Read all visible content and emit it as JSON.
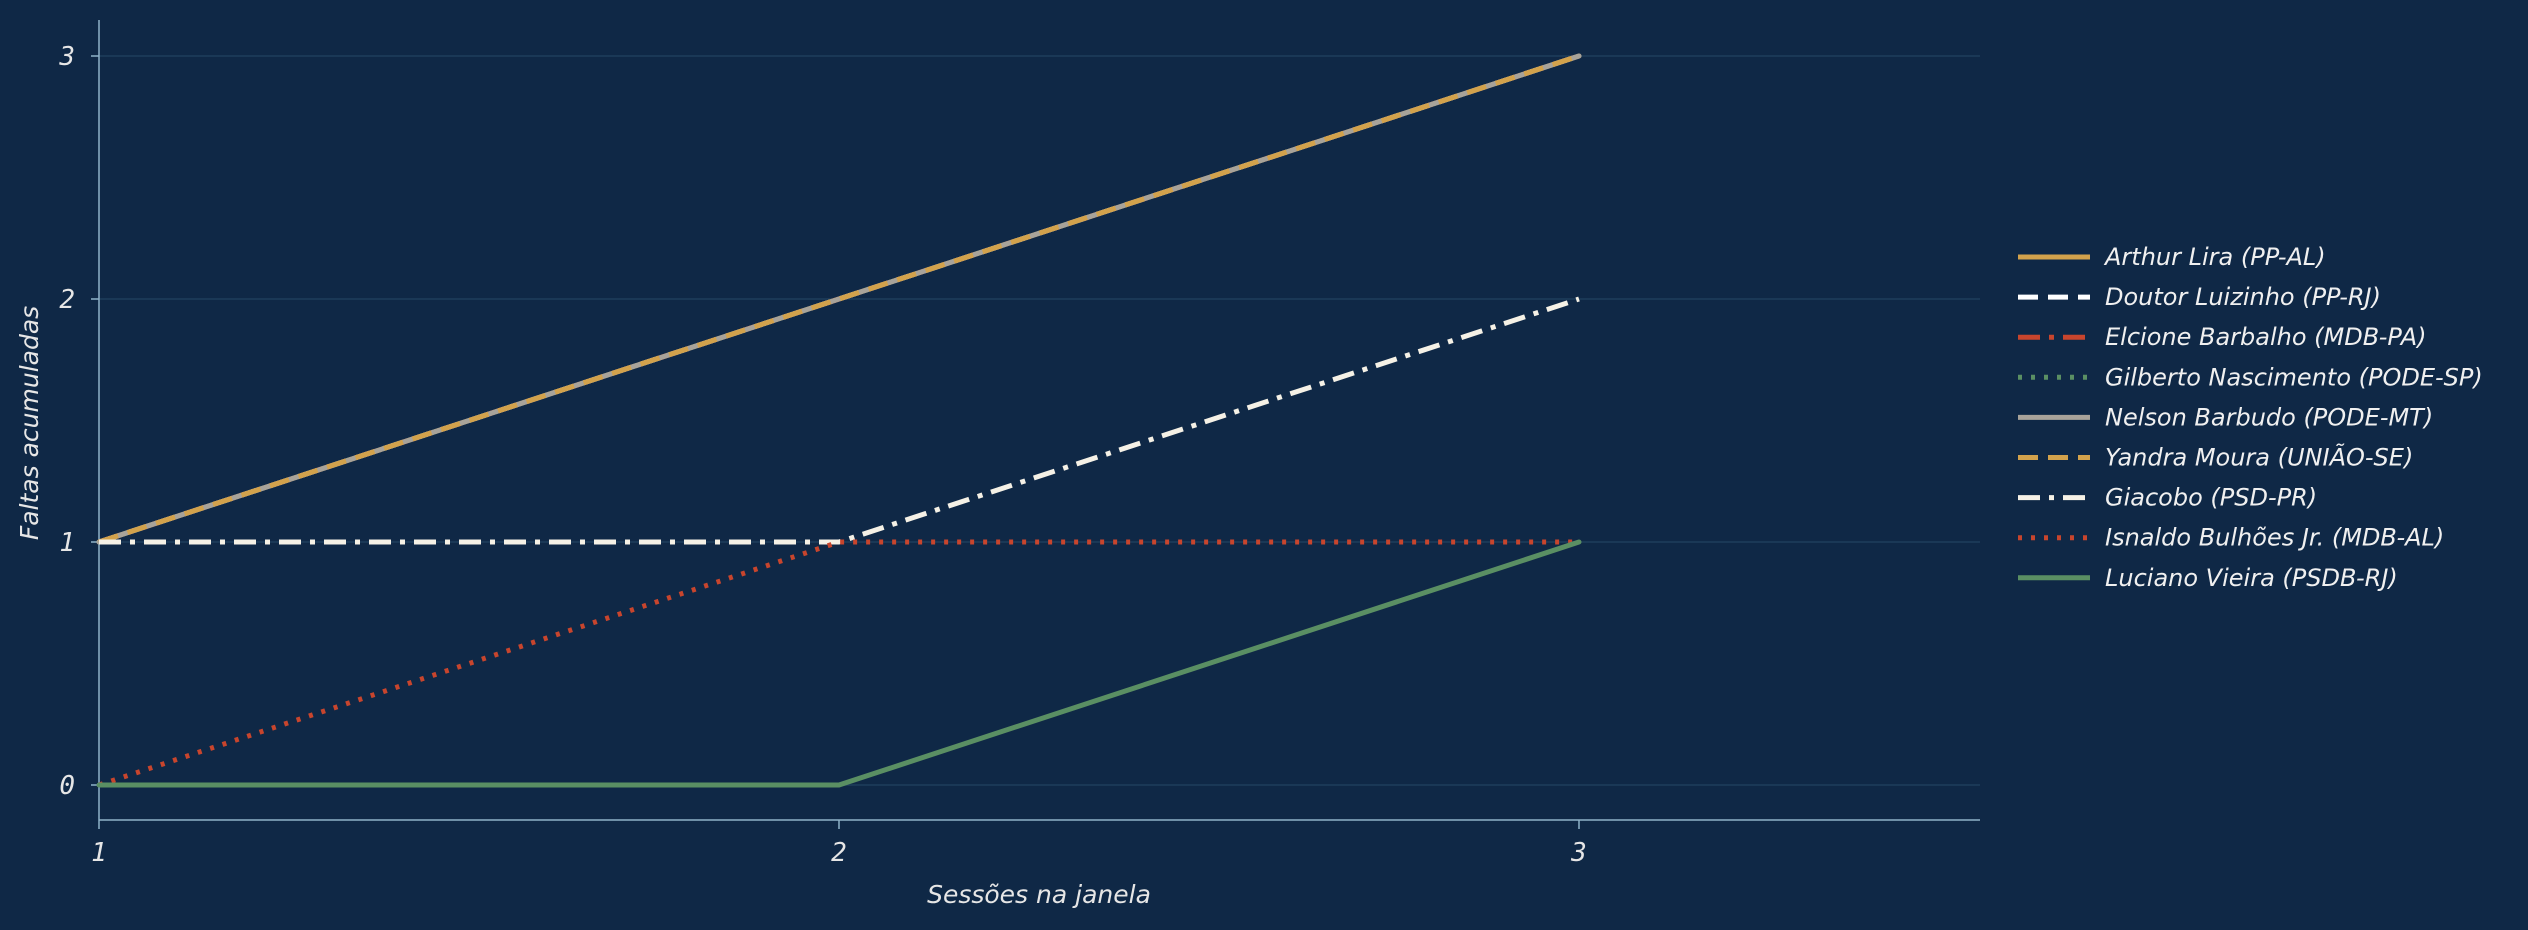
{
  "chart_data": {
    "type": "line",
    "xlabel": "Sessões na janela",
    "ylabel": "Faltas acumuladas",
    "x": [
      1,
      2,
      3
    ],
    "xlim": [
      1,
      3.55
    ],
    "ylim": [
      -0.15,
      3.15
    ],
    "xticks": [
      "1",
      "2",
      "3"
    ],
    "yticks": [
      "0",
      "1",
      "2",
      "3"
    ],
    "grid": "horizontal",
    "legend_position": "right",
    "series": [
      {
        "name": "Arthur Lira (PP-AL)",
        "values": [
          1,
          2,
          3
        ],
        "color": "#d2a24c",
        "style": "solid"
      },
      {
        "name": "Doutor Luizinho (PP-RJ)",
        "values": [
          1,
          2,
          3
        ],
        "color": "#ffffff",
        "style": "dashed"
      },
      {
        "name": "Elcione Barbalho (MDB-PA)",
        "values": [
          1,
          2,
          3
        ],
        "color": "#c8452d",
        "style": "dashdot"
      },
      {
        "name": "Gilberto Nascimento (PODE-SP)",
        "values": [
          1,
          2,
          3
        ],
        "color": "#5a8f63",
        "style": "dotted"
      },
      {
        "name": "Nelson Barbudo (PODE-MT)",
        "values": [
          1,
          2,
          3
        ],
        "color": "#a8a39a",
        "style": "solid"
      },
      {
        "name": "Yandra Moura (UNIÃO-SE)",
        "values": [
          1,
          2,
          3
        ],
        "color": "#d2a24c",
        "style": "dashed"
      },
      {
        "name": "Giacobo (PSD-PR)",
        "values": [
          1,
          1,
          2
        ],
        "color": "#f5f1e6",
        "style": "dashdot"
      },
      {
        "name": "Isnaldo Bulhões Jr. (MDB-AL)",
        "values": [
          0,
          1,
          1
        ],
        "color": "#c8452d",
        "style": "dotted"
      },
      {
        "name": "Luciano Vieira (PSDB-RJ)",
        "values": [
          0,
          0,
          1
        ],
        "color": "#5a8f63",
        "style": "solid"
      }
    ]
  }
}
